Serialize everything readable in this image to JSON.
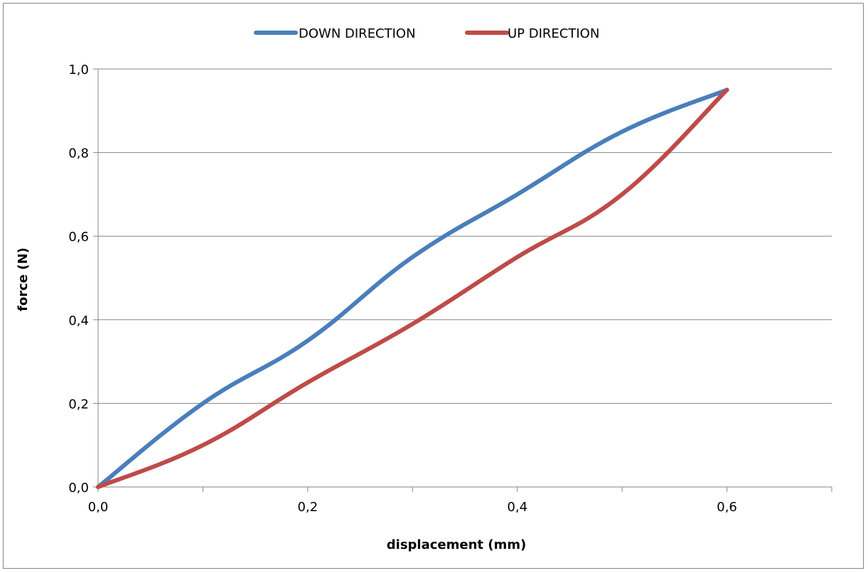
{
  "chart_data": {
    "type": "line",
    "title": "",
    "xlabel": "displacement (mm)",
    "ylabel": "force (N)",
    "xlim": [
      0,
      0.7
    ],
    "ylim": [
      0,
      1.0
    ],
    "x_ticks": [
      "0,0",
      "0,2",
      "0,4",
      "0,6"
    ],
    "y_ticks": [
      "0,0",
      "0,2",
      "0,4",
      "0,6",
      "0,8",
      "1,0"
    ],
    "grid": "horizontal",
    "legend_position": "top-center",
    "smooth": true,
    "series": [
      {
        "name": "DOWN DIRECTION",
        "color": "#4A7EBB",
        "points": [
          [
            0.0,
            0.0
          ],
          [
            0.1,
            0.2
          ],
          [
            0.2,
            0.35
          ],
          [
            0.3,
            0.55
          ],
          [
            0.4,
            0.7
          ],
          [
            0.5,
            0.85
          ],
          [
            0.6,
            0.95
          ]
        ]
      },
      {
        "name": "UP DIRECTION",
        "color": "#BE4B48",
        "points": [
          [
            0.0,
            0.0
          ],
          [
            0.1,
            0.1
          ],
          [
            0.2,
            0.25
          ],
          [
            0.3,
            0.39
          ],
          [
            0.4,
            0.55
          ],
          [
            0.5,
            0.7
          ],
          [
            0.6,
            0.95
          ]
        ]
      }
    ]
  }
}
